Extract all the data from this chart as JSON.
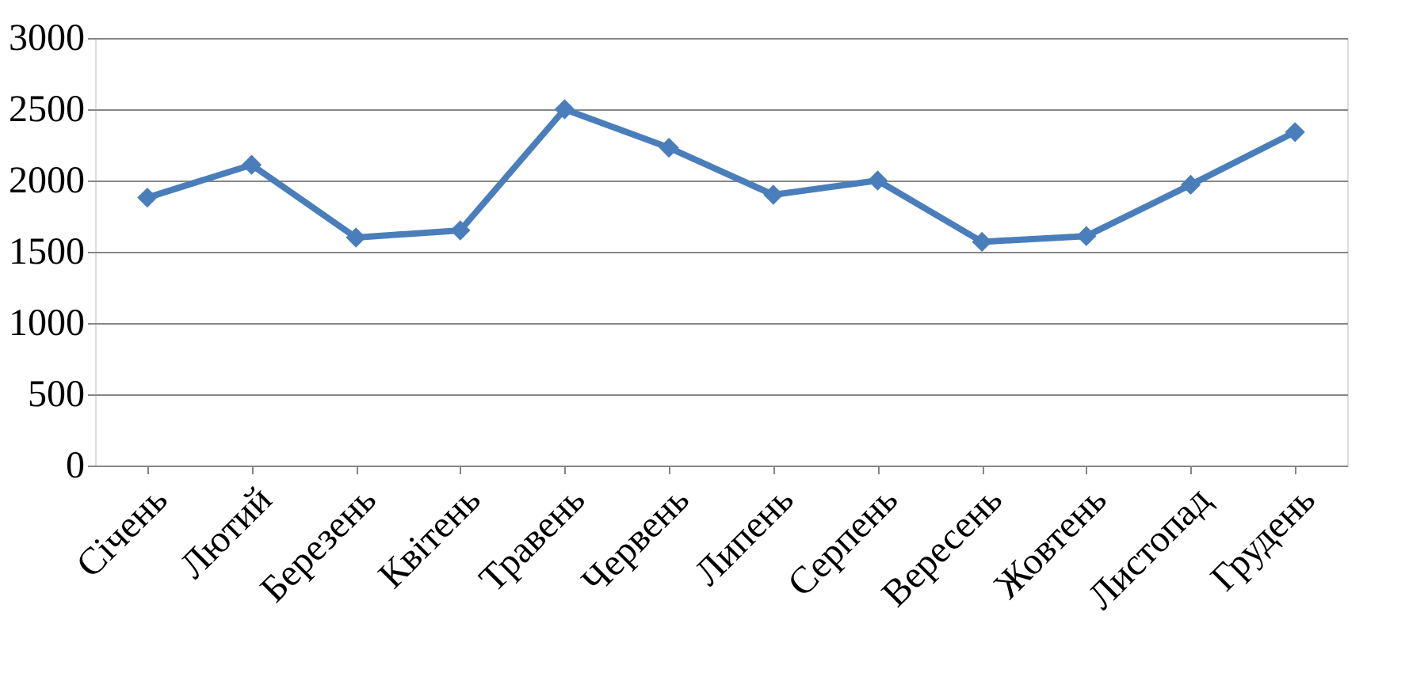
{
  "chart_data": {
    "type": "line",
    "categories": [
      "Січень",
      "Лютий",
      "Березень",
      "Квітень",
      "Травень",
      "Червень",
      "Липень",
      "Серпень",
      "Вересень",
      "Жовтень",
      "Листопад",
      "Грудень"
    ],
    "series": [
      {
        "color": "#4a7ebb",
        "values": [
          1880,
          2110,
          1600,
          1650,
          2500,
          2230,
          1900,
          2000,
          1570,
          1610,
          1970,
          2340
        ]
      }
    ],
    "ylim": [
      0,
      3000
    ],
    "yticks": [
      0,
      500,
      1000,
      1500,
      2000,
      2500,
      3000
    ],
    "grid": "y",
    "marker": "diamond",
    "line_style": "solid"
  }
}
